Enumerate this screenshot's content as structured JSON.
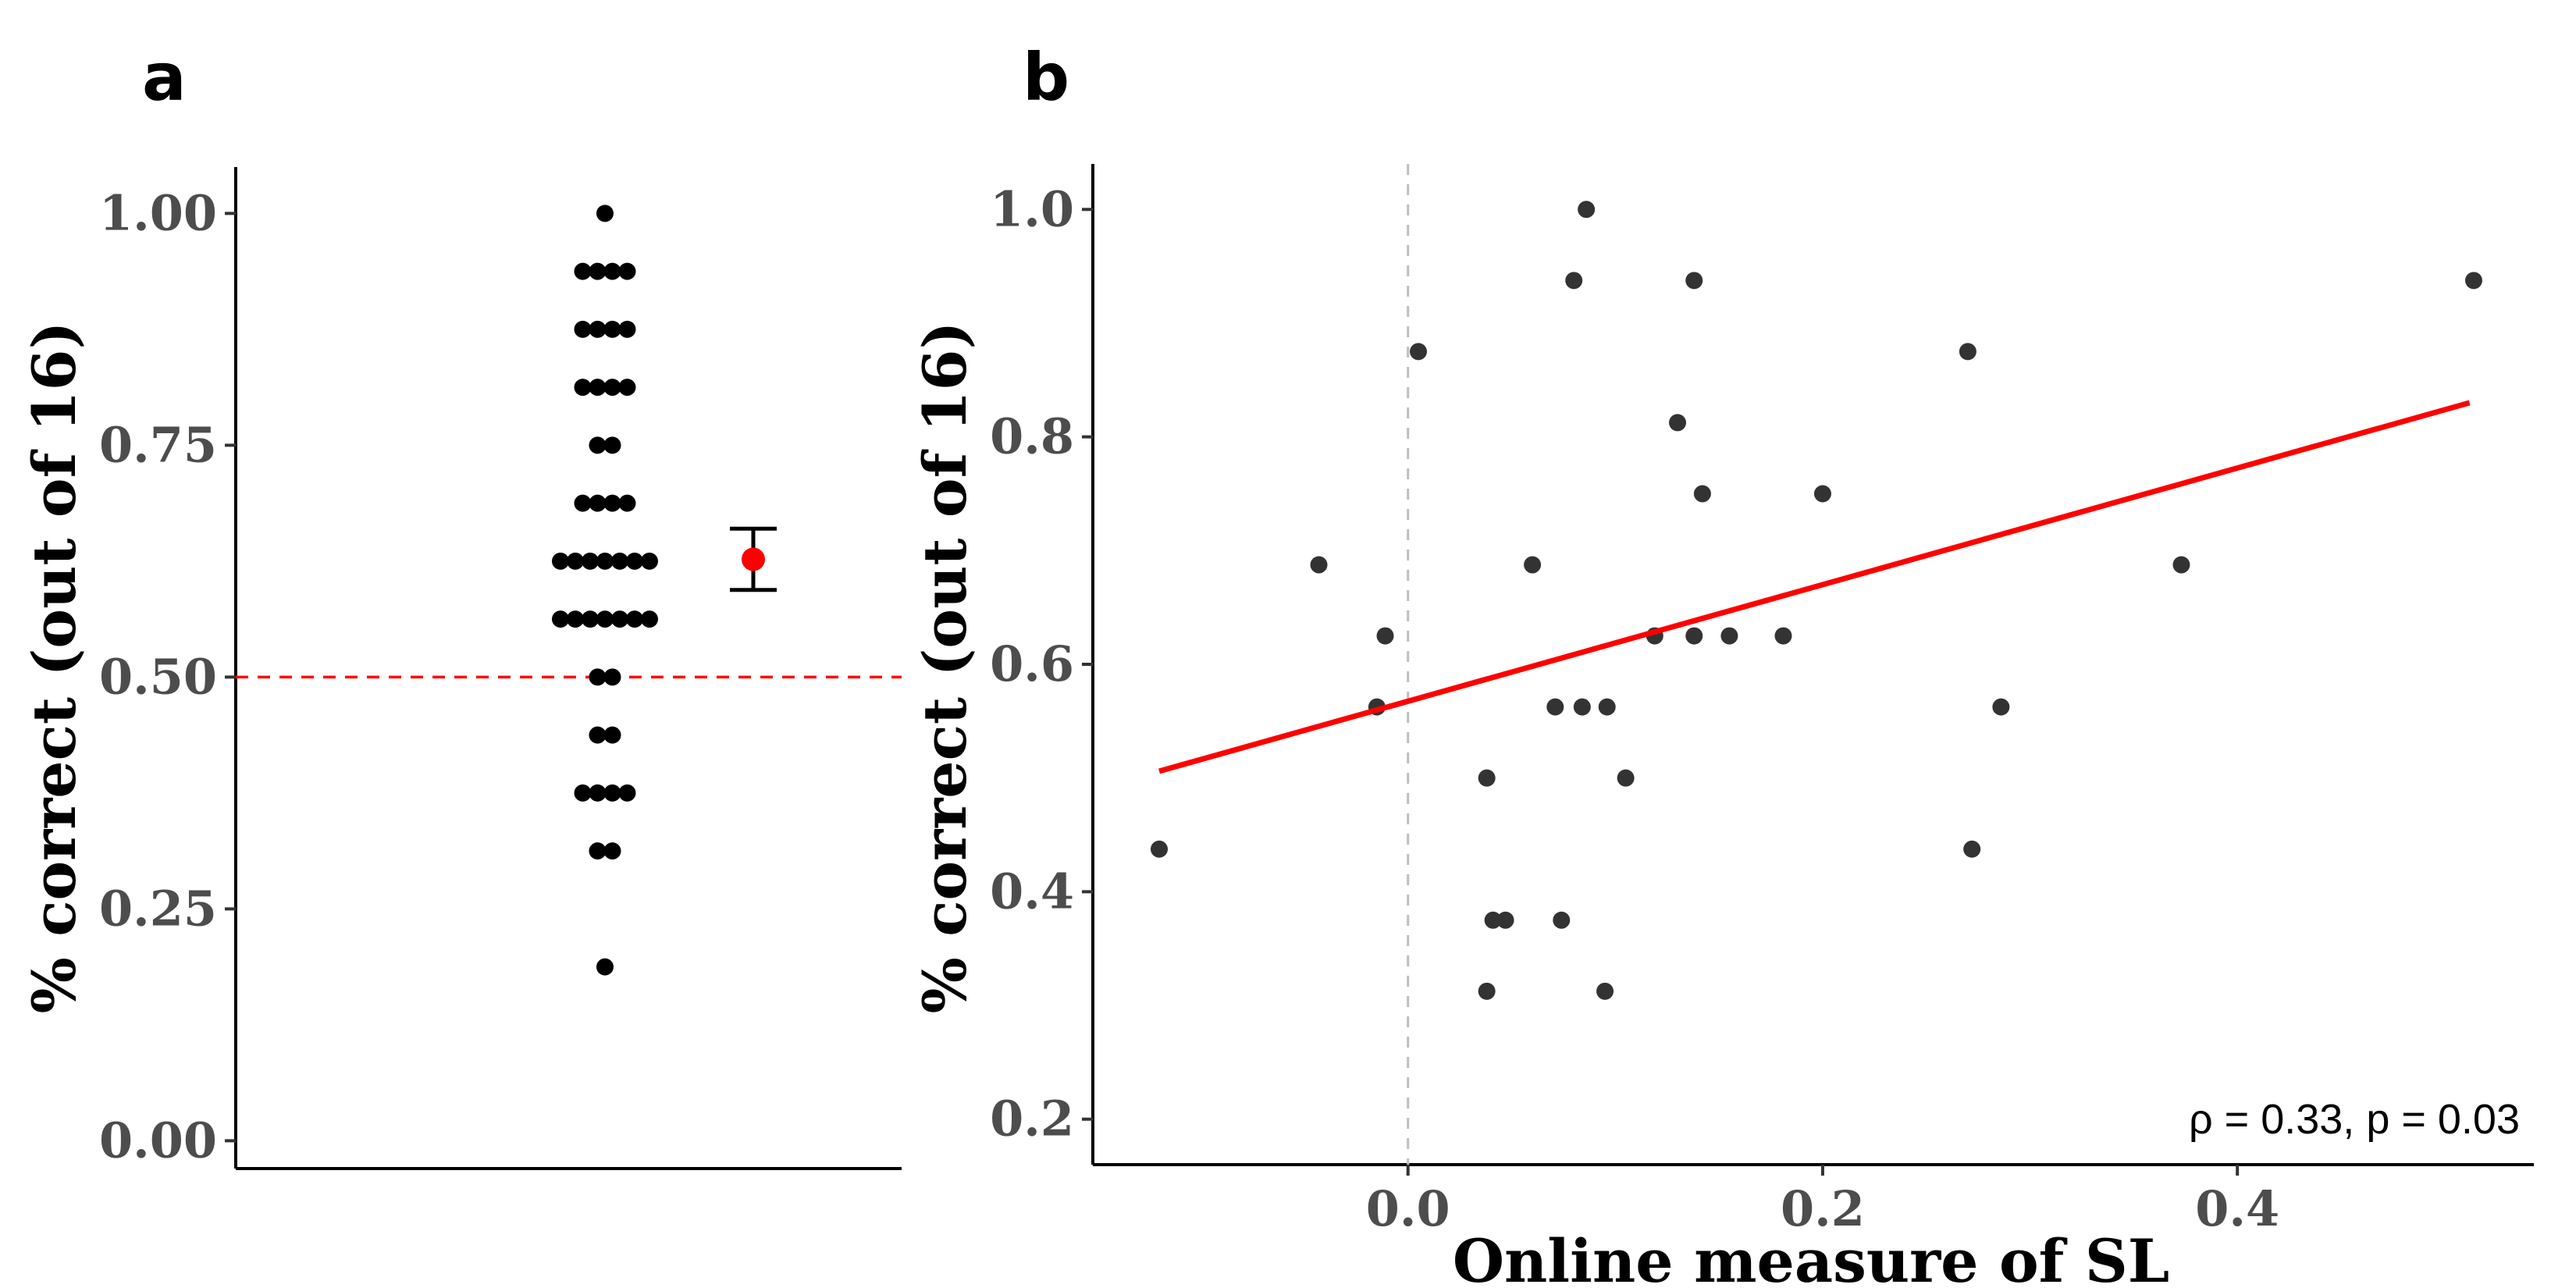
{
  "chart_data": [
    {
      "panel": "a",
      "type": "dotplot",
      "ylabel": "% correct (out of 16)",
      "xlabel": "",
      "ylim": [
        -0.03,
        1.05
      ],
      "yticks": [
        0.0,
        0.25,
        0.5,
        0.75,
        1.0
      ],
      "ytick_labels": [
        "0.00",
        "0.25",
        "0.50",
        "0.75",
        "1.00"
      ],
      "grid": false,
      "dot_color": "#000000",
      "bins": [
        {
          "y": 0.1875,
          "count": 1
        },
        {
          "y": 0.3125,
          "count": 2
        },
        {
          "y": 0.375,
          "count": 4
        },
        {
          "y": 0.4375,
          "count": 2
        },
        {
          "y": 0.5,
          "count": 2
        },
        {
          "y": 0.5625,
          "count": 7
        },
        {
          "y": 0.625,
          "count": 7
        },
        {
          "y": 0.6875,
          "count": 4
        },
        {
          "y": 0.75,
          "count": 2
        },
        {
          "y": 0.8125,
          "count": 4
        },
        {
          "y": 0.875,
          "count": 4
        },
        {
          "y": 0.9375,
          "count": 4
        },
        {
          "y": 1.0,
          "count": 1
        }
      ],
      "summary": {
        "mean": 0.627,
        "ci_low": 0.594,
        "ci_high": 0.66,
        "point_color": "#ff0000",
        "bar_color": "#000000"
      },
      "reference_line": {
        "y": 0.5,
        "color": "#ff0000",
        "style": "dashed"
      }
    },
    {
      "panel": "b",
      "type": "scatter",
      "xlabel": "Online measure of SL",
      "ylabel": "% correct (out of 16)",
      "xlim": [
        -0.152,
        0.543
      ],
      "ylim": [
        0.16,
        1.04
      ],
      "xticks": [
        0.0,
        0.2,
        0.4
      ],
      "xtick_labels": [
        "0.0",
        "0.2",
        "0.4"
      ],
      "yticks": [
        0.2,
        0.4,
        0.6,
        0.8,
        1.0
      ],
      "ytick_labels": [
        "0.2",
        "0.4",
        "0.6",
        "0.8",
        "1.0"
      ],
      "grid": false,
      "point_color": "#333333",
      "points": [
        {
          "x": 0.086,
          "y": 1.0
        },
        {
          "x": 0.08,
          "y": 0.9375
        },
        {
          "x": 0.138,
          "y": 0.9375
        },
        {
          "x": 0.514,
          "y": 0.9375
        },
        {
          "x": 0.005,
          "y": 0.875
        },
        {
          "x": 0.27,
          "y": 0.875
        },
        {
          "x": 0.13,
          "y": 0.8125
        },
        {
          "x": 0.142,
          "y": 0.75
        },
        {
          "x": 0.2,
          "y": 0.75
        },
        {
          "x": -0.043,
          "y": 0.6875
        },
        {
          "x": 0.06,
          "y": 0.6875
        },
        {
          "x": 0.373,
          "y": 0.6875
        },
        {
          "x": -0.011,
          "y": 0.625
        },
        {
          "x": 0.119,
          "y": 0.625
        },
        {
          "x": 0.138,
          "y": 0.625
        },
        {
          "x": 0.155,
          "y": 0.625
        },
        {
          "x": 0.181,
          "y": 0.625
        },
        {
          "x": -0.015,
          "y": 0.5625
        },
        {
          "x": 0.071,
          "y": 0.5625
        },
        {
          "x": 0.084,
          "y": 0.5625
        },
        {
          "x": 0.096,
          "y": 0.5625
        },
        {
          "x": 0.286,
          "y": 0.5625
        },
        {
          "x": 0.038,
          "y": 0.5
        },
        {
          "x": 0.105,
          "y": 0.5
        },
        {
          "x": -0.12,
          "y": 0.4375
        },
        {
          "x": 0.272,
          "y": 0.4375
        },
        {
          "x": 0.041,
          "y": 0.375
        },
        {
          "x": 0.047,
          "y": 0.375
        },
        {
          "x": 0.074,
          "y": 0.375
        },
        {
          "x": 0.038,
          "y": 0.3125
        },
        {
          "x": 0.095,
          "y": 0.3125
        }
      ],
      "fit_line": {
        "color": "#ff0000",
        "x": [
          -0.12,
          0.512
        ],
        "y": [
          0.506,
          0.83
        ]
      },
      "reference_line": {
        "x": 0.0,
        "color": "#bebebe",
        "style": "dashed"
      },
      "annotation": "ρ = 0.33, p = 0.03"
    }
  ]
}
